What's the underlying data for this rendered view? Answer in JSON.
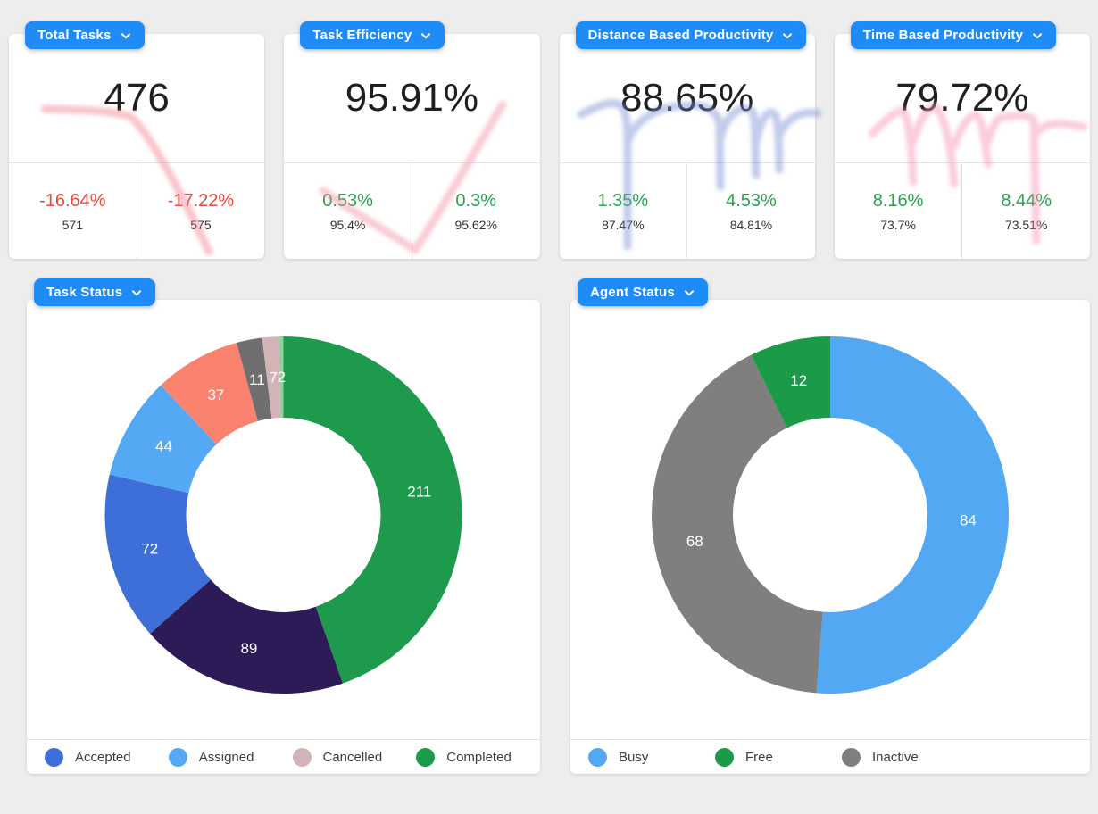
{
  "theme": {
    "accent_blue": "#1e8bf7",
    "background": "#ededee",
    "card_background": "#ffffff",
    "positive_green": "#2aa04e",
    "negative_red": "#e64a3d"
  },
  "kpi_cards": [
    {
      "title": "Total Tasks",
      "menu_icon": "chevron-down",
      "value": "476",
      "cells": [
        {
          "delta": "-16.64%",
          "delta_color": "#e64a3d",
          "value": "571"
        },
        {
          "delta": "-17.22%",
          "delta_color": "#e64a3d",
          "value": "575"
        }
      ]
    },
    {
      "title": "Task Efficiency",
      "menu_icon": "chevron-down",
      "value": "95.91%",
      "cells": [
        {
          "delta": "0.53%",
          "delta_color": "#2aa04e",
          "value": "95.4%"
        },
        {
          "delta": "0.3%",
          "delta_color": "#2aa04e",
          "value": "95.62%"
        }
      ]
    },
    {
      "title": "Distance Based Productivity",
      "menu_icon": "chevron-down",
      "value": "88.65%",
      "cells": [
        {
          "delta": "1.35%",
          "delta_color": "#2aa04e",
          "value": "87.47%"
        },
        {
          "delta": "4.53%",
          "delta_color": "#2aa04e",
          "value": "84.81%"
        }
      ]
    },
    {
      "title": "Time Based Productivity",
      "menu_icon": "chevron-down",
      "value": "79.72%",
      "cells": [
        {
          "delta": "8.16%",
          "delta_color": "#2aa04e",
          "value": "73.7%"
        },
        {
          "delta": "8.44%",
          "delta_color": "#2aa04e",
          "value": "73.51%"
        }
      ]
    }
  ],
  "chart_data": [
    {
      "type": "pie",
      "subtype": "donut",
      "title": "Task Status",
      "menu_icon": "chevron-down",
      "legend_position": "bottom",
      "slices": [
        {
          "label": "Completed",
          "value": 211,
          "color": "#1d9a4b"
        },
        {
          "label": null,
          "value": 89,
          "color": "#2d1b58"
        },
        {
          "label": "Accepted",
          "value": 72,
          "color": "#3e6fd9"
        },
        {
          "label": "Assigned",
          "value": 44,
          "color": "#55a9f4"
        },
        {
          "label": null,
          "value": 37,
          "color": "#f9836e"
        },
        {
          "label": null,
          "value": 11,
          "color": "#6f6f6f"
        },
        {
          "label": "Cancelled",
          "value": 7,
          "color": "#d3b3b8"
        },
        {
          "label": null,
          "value": 2,
          "color": "#8fd19d"
        }
      ],
      "legend": [
        {
          "label": "Accepted",
          "color": "#3e6fd9"
        },
        {
          "label": "Assigned",
          "color": "#55a9f4"
        },
        {
          "label": "Cancelled",
          "color": "#d3b3b8"
        },
        {
          "label": "Completed",
          "color": "#1d9a4b"
        }
      ]
    },
    {
      "type": "pie",
      "subtype": "donut",
      "title": "Agent Status",
      "menu_icon": "chevron-down",
      "legend_position": "bottom",
      "slices": [
        {
          "label": "Busy",
          "value": 84,
          "color": "#53a8f4"
        },
        {
          "label": "Inactive",
          "value": 68,
          "color": "#7f7f7f"
        },
        {
          "label": "Free",
          "value": 12,
          "color": "#1b9a47"
        }
      ],
      "legend": [
        {
          "label": "Busy",
          "color": "#53a8f4"
        },
        {
          "label": "Free",
          "color": "#1b9a47"
        },
        {
          "label": "Inactive",
          "color": "#7f7f7f"
        }
      ]
    }
  ]
}
